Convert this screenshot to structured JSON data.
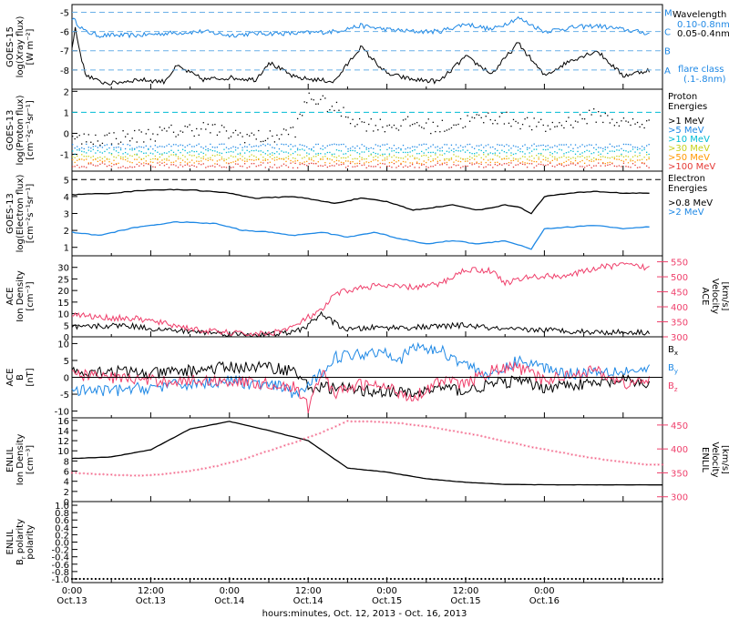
{
  "chart_data": [
    {
      "type": "line",
      "panel": "goes15-xray",
      "ylabel_lines": [
        "GOES-15",
        "log(Xray flux)",
        "[W m⁻²]"
      ],
      "ylim": [
        -9,
        -4.6
      ],
      "yticks": [
        "-5",
        "-6",
        "-7",
        "-8"
      ],
      "legend_title": "Wavelength",
      "legend": [
        {
          "name": "0.10-0.8nm",
          "color": "#1e88e5"
        },
        {
          "name": "0.05-0.4nm",
          "color": "#000000"
        }
      ],
      "flare_class_labels": [
        {
          "label": "M",
          "value": -5
        },
        {
          "label": "C",
          "value": -6
        },
        {
          "label": "B",
          "value": -7
        },
        {
          "label": "A",
          "value": -8
        }
      ],
      "flare_class_note": [
        "flare class",
        "(.1-.8nm)"
      ],
      "series": [
        {
          "name": "0.10-0.8nm",
          "x": [
            0,
            2,
            4,
            6,
            10,
            14,
            20,
            24,
            28,
            34,
            40,
            44,
            48,
            52,
            56,
            60,
            64,
            68,
            72,
            76,
            80,
            84,
            88
          ],
          "y": [
            -5.3,
            -6.0,
            -6.2,
            -6.2,
            -6.2,
            -6.1,
            -6.0,
            -6.2,
            -6.1,
            -6.1,
            -6.0,
            -5.7,
            -5.9,
            -6.0,
            -6.0,
            -5.6,
            -5.9,
            -5.3,
            -6.0,
            -5.8,
            -5.7,
            -5.9,
            -6.1
          ]
        },
        {
          "name": "0.05-0.4nm",
          "x": [
            0,
            0.5,
            1,
            2,
            4,
            6,
            10,
            14,
            16,
            20,
            24,
            28,
            30,
            34,
            40,
            44,
            48,
            52,
            56,
            60,
            64,
            68,
            72,
            76,
            80,
            84,
            88
          ],
          "y": [
            -6.9,
            -5.8,
            -6.7,
            -8.2,
            -8.6,
            -8.7,
            -8.5,
            -8.6,
            -7.8,
            -8.5,
            -8.4,
            -8.5,
            -7.6,
            -8.4,
            -8.6,
            -6.8,
            -8.2,
            -8.5,
            -8.6,
            -7.3,
            -8.2,
            -6.6,
            -8.3,
            -7.5,
            -7.0,
            -8.3,
            -8.0
          ]
        }
      ]
    },
    {
      "type": "scatter",
      "panel": "goes13-proton",
      "ylabel_lines": [
        "GOES-13",
        "log(Proton flux)",
        "[cm⁻²s⁻¹sr⁻¹]"
      ],
      "ylim": [
        -1.8,
        2.1
      ],
      "yticks": [
        "2",
        "1",
        "0",
        "-1"
      ],
      "legend_title": [
        "Proton",
        "Energies"
      ],
      "legend": [
        {
          "name": ">1 MeV",
          "color": "#000000"
        },
        {
          "name": ">5 MeV",
          "color": "#1e88e5"
        },
        {
          "name": ">10 MeV",
          "color": "#00bcd4"
        },
        {
          "name": ">30 MeV",
          "color": "#c6d11a"
        },
        {
          "name": ">50 MeV",
          "color": "#ff9800"
        },
        {
          "name": ">100 MeV",
          "color": "#e53935"
        }
      ],
      "threshold": 1,
      "series": [
        {
          "name": ">1 MeV",
          "x": [
            0,
            10,
            20,
            24,
            30,
            34,
            36,
            40,
            44,
            48,
            52,
            56,
            60,
            64,
            68,
            72,
            76,
            80,
            84,
            88
          ],
          "y": [
            -0.3,
            -0.1,
            0.3,
            0,
            -0.2,
            0.2,
            1.8,
            1.2,
            0.5,
            0.4,
            0.5,
            0.3,
            0.6,
            0.8,
            0.6,
            0.3,
            0.6,
            0.9,
            0.5,
            0.5
          ]
        },
        {
          "name": ">5 MeV",
          "x": [
            0,
            88
          ],
          "y": [
            -0.6,
            -0.6
          ]
        },
        {
          "name": ">10 MeV",
          "x": [
            0,
            88
          ],
          "y": [
            -0.85,
            -0.85
          ]
        },
        {
          "name": ">30 MeV",
          "x": [
            0,
            88
          ],
          "y": [
            -1.1,
            -1.1
          ]
        },
        {
          "name": ">50 MeV",
          "x": [
            0,
            88
          ],
          "y": [
            -1.3,
            -1.3
          ]
        },
        {
          "name": ">100 MeV",
          "x": [
            0,
            88
          ],
          "y": [
            -1.5,
            -1.5
          ]
        }
      ]
    },
    {
      "type": "line",
      "panel": "goes13-electron",
      "ylabel_lines": [
        "GOES-13",
        "log(Electron flux)",
        "[cm⁻²s⁻¹sr⁻¹]"
      ],
      "ylim": [
        0.5,
        5.5
      ],
      "yticks": [
        "5",
        "4",
        "3",
        "2",
        "1"
      ],
      "legend_title": [
        "Electron",
        "Energies"
      ],
      "legend": [
        {
          "name": ">0.8 MeV",
          "color": "#000000"
        },
        {
          "name": ">2 MeV",
          "color": "#1e88e5"
        }
      ],
      "threshold": 5,
      "series": [
        {
          "name": ">0.8 MeV",
          "x": [
            0,
            6,
            12,
            18,
            24,
            28,
            34,
            40,
            44,
            48,
            52,
            54,
            58,
            62,
            66,
            68,
            70,
            72,
            76,
            80,
            84,
            88
          ],
          "y": [
            4.1,
            4.2,
            4.4,
            4.4,
            4.2,
            3.9,
            4.0,
            3.6,
            3.9,
            3.7,
            3.2,
            3.3,
            3.5,
            3.2,
            3.5,
            3.4,
            3.0,
            4.0,
            4.2,
            4.3,
            4.2,
            4.2
          ]
        },
        {
          "name": ">2 MeV",
          "x": [
            0,
            4,
            10,
            16,
            22,
            26,
            30,
            34,
            38,
            42,
            46,
            50,
            54,
            58,
            62,
            66,
            70,
            72,
            76,
            80,
            84,
            88
          ],
          "y": [
            1.9,
            1.7,
            2.2,
            2.5,
            2.4,
            2.0,
            1.9,
            1.7,
            1.9,
            1.6,
            1.9,
            1.5,
            1.2,
            1.4,
            1.2,
            1.4,
            0.9,
            2.1,
            2.2,
            2.3,
            2.1,
            2.2
          ]
        }
      ]
    },
    {
      "type": "line",
      "panel": "ace-plasma",
      "ylabel_lines": [
        "ACE",
        "Ion Density",
        "[cm⁻³]"
      ],
      "ylim": [
        0,
        35
      ],
      "yticks": [
        "0",
        "5",
        "10",
        "15",
        "20",
        "25",
        "30"
      ],
      "y2label_lines": [
        "ACE",
        "Velocity",
        "[km/s]"
      ],
      "y2lim": [
        300,
        570
      ],
      "y2ticks": [
        "300",
        "350",
        "400",
        "450",
        "500",
        "550"
      ],
      "series": [
        {
          "name": "Ion Density",
          "axis": "left",
          "color": "#000000",
          "x": [
            0,
            8,
            14,
            20,
            26,
            30,
            34,
            36,
            38,
            40,
            42,
            46,
            52,
            60,
            66,
            72,
            80,
            88
          ],
          "y": [
            4,
            5,
            3,
            2,
            1,
            1,
            2,
            5,
            10,
            6,
            3,
            4,
            4,
            5,
            3,
            3,
            2,
            2
          ]
        },
        {
          "name": "Velocity",
          "axis": "right",
          "color": "#ef3f6b",
          "x": [
            0,
            4,
            10,
            14,
            20,
            26,
            30,
            34,
            36,
            38,
            40,
            42,
            46,
            52,
            56,
            60,
            64,
            66,
            70,
            76,
            80,
            84,
            88
          ],
          "y": [
            375,
            365,
            360,
            345,
            320,
            310,
            310,
            335,
            365,
            385,
            440,
            455,
            470,
            465,
            475,
            525,
            520,
            480,
            500,
            505,
            530,
            540,
            530
          ]
        }
      ]
    },
    {
      "type": "line",
      "panel": "ace-mag",
      "ylabel_lines": [
        "ACE",
        "B",
        "[nT]"
      ],
      "ylim": [
        -12,
        12
      ],
      "yticks": [
        "-10",
        "-5",
        "0",
        "5",
        "10"
      ],
      "legend": [
        {
          "name": "B",
          "sub": "x",
          "color": "#000000"
        },
        {
          "name": "B",
          "sub": "y",
          "color": "#1e88e5"
        },
        {
          "name": "B",
          "sub": "z",
          "color": "#ef3f6b"
        }
      ],
      "series": [
        {
          "name": "Bx",
          "x": [
            0,
            6,
            12,
            18,
            24,
            30,
            34,
            36,
            40,
            44,
            48,
            52,
            56,
            60,
            64,
            68,
            72,
            76,
            80,
            84,
            88
          ],
          "y": [
            2,
            2,
            1,
            2,
            3,
            3,
            2,
            -3,
            -3,
            -4,
            -4,
            -5,
            -3,
            -4,
            -2,
            -1,
            -3,
            -2,
            -2,
            -1,
            -2
          ]
        },
        {
          "name": "By",
          "x": [
            0,
            6,
            12,
            18,
            24,
            28,
            32,
            34,
            36,
            40,
            44,
            48,
            50,
            52,
            56,
            60,
            64,
            68,
            72,
            76,
            80,
            84,
            88
          ],
          "y": [
            -4,
            -4,
            -3,
            -2,
            -1,
            -2,
            -3,
            -5,
            -3,
            6,
            7,
            8,
            5,
            9,
            8,
            4,
            0,
            5,
            3,
            1,
            2,
            2,
            2
          ]
        },
        {
          "name": "Bz",
          "x": [
            0,
            6,
            12,
            18,
            24,
            30,
            34,
            36,
            38,
            40,
            44,
            48,
            52,
            56,
            60,
            64,
            68,
            72,
            76,
            80,
            84,
            88
          ],
          "y": [
            1,
            0,
            -1,
            -1,
            -1,
            -2,
            -3,
            -9,
            2,
            -5,
            -2,
            -3,
            -6,
            -1,
            -2,
            2,
            3,
            -1,
            1,
            2,
            -2,
            -1
          ]
        }
      ]
    },
    {
      "type": "line",
      "panel": "enlil-plasma",
      "ylabel_lines": [
        "ENLIL",
        "Ion Density",
        "[cm⁻³]"
      ],
      "ylim": [
        0,
        16.5
      ],
      "yticks": [
        "0",
        "2",
        "4",
        "6",
        "8",
        "10",
        "12",
        "14",
        "16"
      ],
      "y2label_lines": [
        "ENLIL",
        "Velocity",
        "[km/s]"
      ],
      "y2lim": [
        290,
        465
      ],
      "y2ticks": [
        "300",
        "350",
        "400",
        "450"
      ],
      "series": [
        {
          "name": "Ion Density",
          "axis": "left",
          "color": "#000000",
          "x": [
            0,
            6,
            12,
            18,
            24,
            30,
            36,
            42,
            48,
            54,
            60,
            66,
            72,
            78,
            84,
            88
          ],
          "y": [
            8.5,
            8.8,
            10.2,
            14.3,
            15.8,
            14.0,
            12.0,
            6.6,
            5.8,
            4.5,
            3.8,
            3.4,
            3.3,
            3.3,
            3.3,
            3.3
          ]
        },
        {
          "name": "Velocity",
          "axis": "right",
          "color": "#ef3f6b",
          "x": [
            0,
            6,
            10,
            14,
            18,
            22,
            26,
            30,
            34,
            38,
            42,
            46,
            50,
            54,
            58,
            62,
            66,
            70,
            74,
            78,
            82,
            86,
            88
          ],
          "y": [
            348,
            344,
            342,
            345,
            352,
            362,
            376,
            394,
            412,
            432,
            456,
            455,
            452,
            445,
            436,
            426,
            414,
            402,
            392,
            382,
            374,
            368,
            365
          ]
        }
      ]
    },
    {
      "type": "scatter",
      "panel": "enlil-polarity",
      "ylabel_lines": [
        "ENLIL",
        "B",
        "polarity"
      ],
      "ylabel_sub": "r",
      "ylim": [
        -1.1,
        1.1
      ],
      "yticks": [
        "1.0",
        "0.8",
        "0.6",
        "0.4",
        "0.2",
        "0.0",
        "-0.2",
        "-0.4",
        "-0.6",
        "-0.8",
        "-1.0"
      ],
      "series": [
        {
          "name": "polarity",
          "x": [
            0,
            90
          ],
          "y": [
            -1,
            -1
          ]
        }
      ]
    }
  ],
  "xaxis": {
    "ticks": [
      {
        "time": "0:00",
        "date": "Oct.13"
      },
      {
        "time": "12:00",
        "date": "Oct.13"
      },
      {
        "time": "0:00",
        "date": "Oct.14"
      },
      {
        "time": "12:00",
        "date": "Oct.14"
      },
      {
        "time": "0:00",
        "date": "Oct.15"
      },
      {
        "time": "12:00",
        "date": "Oct.15"
      },
      {
        "time": "0:00",
        "date": "Oct.16"
      }
    ],
    "title": "hours:minutes, Oct. 12, 2013 - Oct. 16, 2013"
  }
}
